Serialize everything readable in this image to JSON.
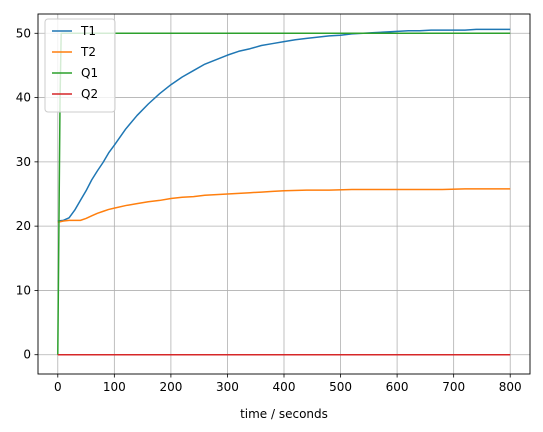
{
  "chart_data": {
    "type": "line",
    "title": "",
    "xlabel": "time / seconds",
    "ylabel": "",
    "xlim": [
      -35,
      835
    ],
    "ylim": [
      -3,
      53
    ],
    "xticks": [
      "0",
      "100",
      "200",
      "300",
      "400",
      "500",
      "600",
      "700",
      "800"
    ],
    "yticks": [
      "0",
      "10",
      "20",
      "30",
      "40",
      "50"
    ],
    "grid": true,
    "legend_position": "top-left",
    "series": [
      {
        "name": "T1",
        "color": "#1f77b4",
        "x": [
          0,
          10,
          20,
          30,
          40,
          50,
          60,
          70,
          80,
          90,
          100,
          120,
          140,
          160,
          180,
          200,
          220,
          240,
          260,
          280,
          300,
          320,
          340,
          360,
          380,
          400,
          420,
          440,
          460,
          480,
          500,
          520,
          540,
          560,
          580,
          600,
          620,
          640,
          660,
          680,
          700,
          720,
          740,
          760,
          780,
          800
        ],
        "y": [
          20.8,
          20.9,
          21.3,
          22.5,
          24.0,
          25.5,
          27.2,
          28.6,
          29.9,
          31.4,
          32.6,
          35.1,
          37.2,
          39.0,
          40.6,
          42.0,
          43.2,
          44.2,
          45.2,
          45.9,
          46.6,
          47.2,
          47.6,
          48.1,
          48.4,
          48.7,
          49.0,
          49.2,
          49.4,
          49.6,
          49.7,
          49.9,
          50.0,
          50.1,
          50.2,
          50.3,
          50.4,
          50.4,
          50.5,
          50.5,
          50.5,
          50.5,
          50.6,
          50.6,
          50.6,
          50.6
        ]
      },
      {
        "name": "T2",
        "color": "#ff7f0e",
        "x": [
          0,
          10,
          20,
          30,
          40,
          50,
          60,
          70,
          80,
          90,
          100,
          120,
          140,
          160,
          180,
          200,
          220,
          240,
          260,
          280,
          300,
          320,
          340,
          360,
          380,
          400,
          440,
          480,
          520,
          560,
          600,
          640,
          680,
          720,
          760,
          800
        ],
        "y": [
          20.6,
          20.8,
          20.9,
          20.9,
          20.9,
          21.2,
          21.6,
          22.0,
          22.3,
          22.6,
          22.8,
          23.2,
          23.5,
          23.8,
          24.0,
          24.3,
          24.5,
          24.6,
          24.8,
          24.9,
          25.0,
          25.1,
          25.2,
          25.3,
          25.4,
          25.5,
          25.6,
          25.6,
          25.7,
          25.7,
          25.7,
          25.7,
          25.7,
          25.8,
          25.8,
          25.8
        ]
      },
      {
        "name": "Q1",
        "color": "#2ca02c",
        "x": [
          0,
          2,
          4,
          6,
          8,
          800
        ],
        "y": [
          0,
          20,
          40,
          50,
          50,
          50
        ]
      },
      {
        "name": "Q2",
        "color": "#d62728",
        "x": [
          0,
          800
        ],
        "y": [
          0,
          0
        ]
      }
    ]
  }
}
